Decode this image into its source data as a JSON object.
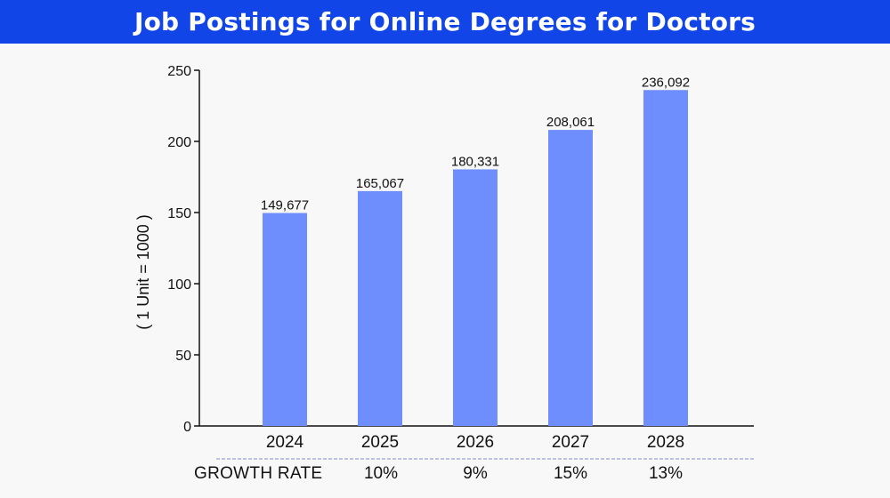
{
  "chart_data": {
    "type": "bar",
    "title": "Job Postings for Online Degrees for Doctors",
    "ylabel": "( 1 Unit = 1000 )",
    "xlabel": "",
    "categories": [
      "2024",
      "2025",
      "2026",
      "2027",
      "2028"
    ],
    "values": [
      149.677,
      165.067,
      180.331,
      208.061,
      236.092
    ],
    "data_labels": [
      "149,677",
      "165,067",
      "180,331",
      "208,061",
      "236,092"
    ],
    "ylim": [
      0,
      250
    ],
    "yticks": [
      0,
      50,
      100,
      150,
      200,
      250
    ],
    "grid": false,
    "legend": "none",
    "bar_color": "#6e8efe",
    "growth_rate": {
      "label": "GROWTH RATE",
      "values": [
        "10%",
        "9%",
        "15%",
        "13%"
      ]
    }
  },
  "colors": {
    "title_bar": "#1145e8",
    "title_text": "#ffffff",
    "bar": "#6e8efe",
    "divider": "#7a8fd8"
  }
}
